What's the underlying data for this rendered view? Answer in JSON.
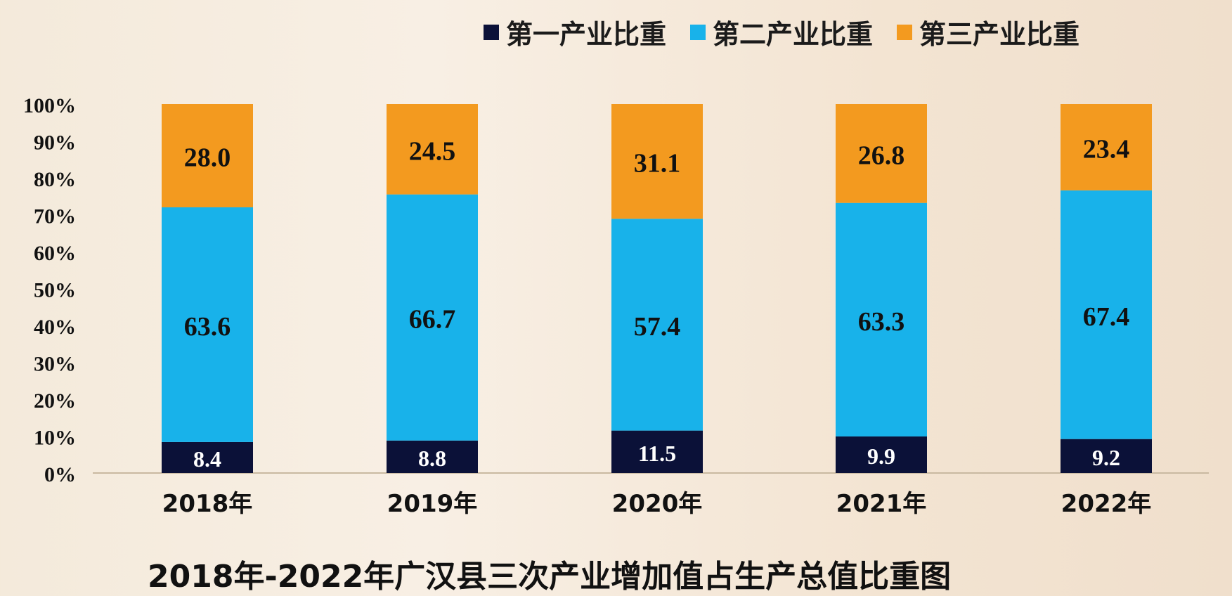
{
  "chart_data": {
    "type": "bar",
    "stacked": true,
    "categories": [
      "2018年",
      "2019年",
      "2020年",
      "2021年",
      "2022年"
    ],
    "series": [
      {
        "name": "第一产业比重",
        "values": [
          8.4,
          8.8,
          11.5,
          9.9,
          9.2
        ],
        "color": "#0b1138",
        "label_color": "#ffffff"
      },
      {
        "name": "第二产业比重",
        "values": [
          63.6,
          66.7,
          57.4,
          63.3,
          67.4
        ],
        "color": "#18b2ea",
        "label_color": "#111111"
      },
      {
        "name": "第三产业比重",
        "values": [
          28.0,
          24.5,
          31.1,
          26.8,
          23.4
        ],
        "color": "#f39a1f",
        "label_color": "#111111"
      }
    ],
    "ylim": [
      0,
      100
    ],
    "yticks": [
      "0%",
      "10%",
      "20%",
      "30%",
      "40%",
      "50%",
      "60%",
      "70%",
      "80%",
      "90%",
      "100%"
    ],
    "legend": "top",
    "grid": false
  },
  "caption": "2018年-2022年广汉县三次产业增加值占生产总值比重图"
}
